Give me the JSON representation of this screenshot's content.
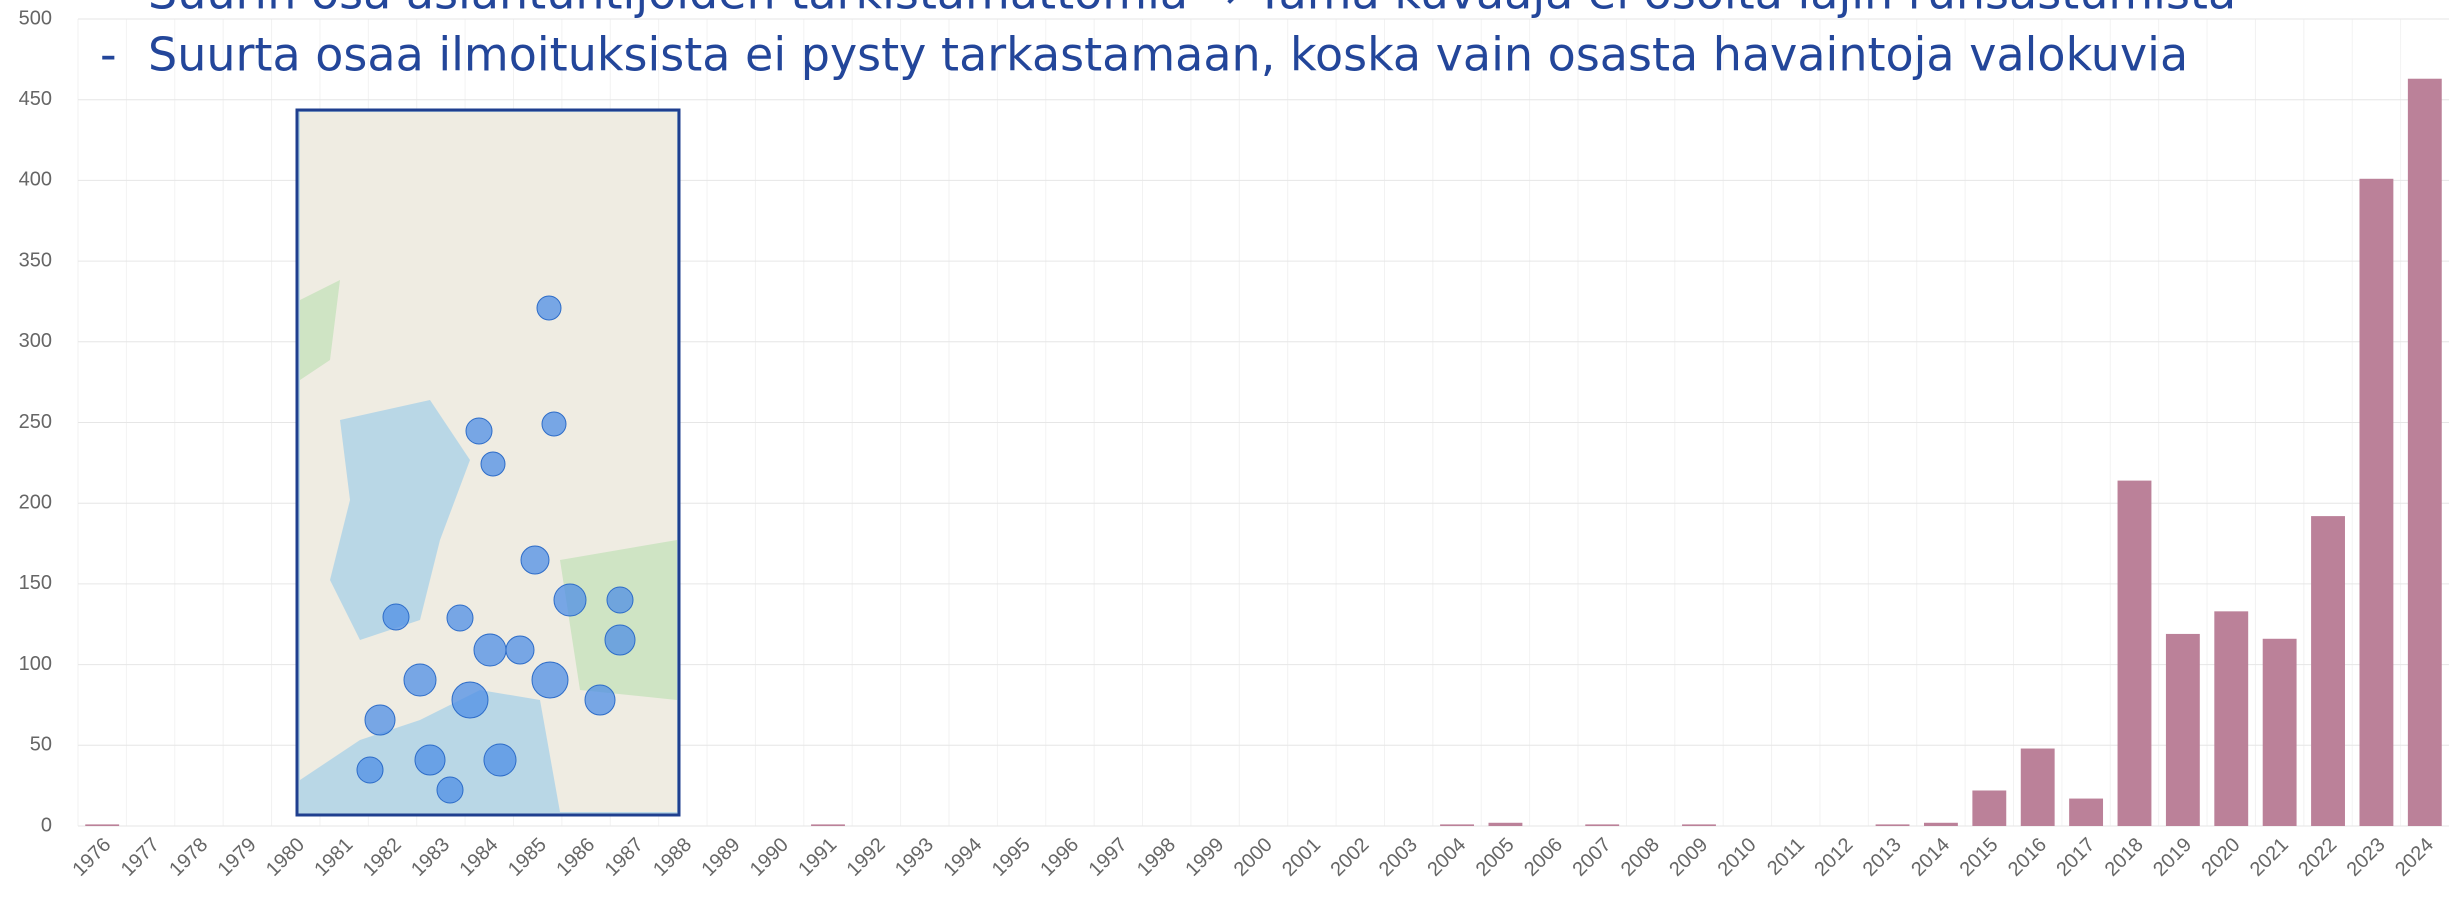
{
  "chart_data": {
    "type": "bar",
    "heading": "Suurin osa asiantuntijoiden tarkistamattomia → Tämä kuvaaja ei osoita lajin runsastumista",
    "bullet_marker": "-",
    "bullet_text": "Suurta osaa ilmoituksista ei pysty tarkastamaan, koska vain osasta havaintoja valokuvia",
    "categories": [
      "1976",
      "1977",
      "1978",
      "1979",
      "1980",
      "1981",
      "1982",
      "1983",
      "1984",
      "1985",
      "1986",
      "1987",
      "1988",
      "1989",
      "1990",
      "1991",
      "1992",
      "1993",
      "1994",
      "1995",
      "1996",
      "1997",
      "1998",
      "1999",
      "2000",
      "2001",
      "2002",
      "2003",
      "2004",
      "2005",
      "2006",
      "2007",
      "2008",
      "2009",
      "2010",
      "2011",
      "2012",
      "2013",
      "2014",
      "2015",
      "2016",
      "2017",
      "2018",
      "2019",
      "2020",
      "2021",
      "2022",
      "2023",
      "2024"
    ],
    "values": [
      1,
      0,
      0,
      0,
      0,
      0,
      0,
      0,
      0,
      0,
      0,
      0,
      0,
      0,
      0,
      1,
      0,
      0,
      0,
      0,
      0,
      0,
      0,
      0,
      0,
      0,
      0,
      0,
      1,
      2,
      0,
      1,
      0,
      1,
      0,
      0,
      0,
      1,
      2,
      22,
      48,
      17,
      214,
      119,
      133,
      116,
      192,
      401,
      463
    ],
    "color": "#bb8199",
    "ylim": [
      0,
      500
    ],
    "yticks": [
      0,
      50,
      100,
      150,
      200,
      250,
      300,
      350,
      400,
      450,
      500
    ],
    "grid": true
  }
}
